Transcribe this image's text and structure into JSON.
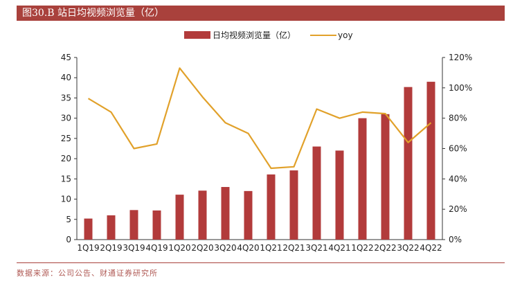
{
  "header": {
    "title": "图30.B 站日均视频浏览量（亿）"
  },
  "footer": {
    "source": "数据来源：公司公告、财通证券研究所"
  },
  "colors": {
    "bar": "#b23b3b",
    "line": "#e1a12a",
    "title_bg": "#a9413c"
  },
  "chart_data": {
    "type": "bar",
    "categories": [
      "1Q19",
      "2Q19",
      "3Q19",
      "4Q19",
      "1Q20",
      "2Q20",
      "3Q20",
      "4Q20",
      "1Q21",
      "2Q21",
      "3Q21",
      "4Q21",
      "1Q22",
      "2Q22",
      "3Q22",
      "4Q22"
    ],
    "series": [
      {
        "name": "日均视频浏览量（亿）",
        "type": "bar",
        "axis": "left",
        "values": [
          5.2,
          6.0,
          7.3,
          7.2,
          11.1,
          12.1,
          13.0,
          12.0,
          16.1,
          17.1,
          23.0,
          22.0,
          30.0,
          31.0,
          37.7,
          39.0
        ]
      },
      {
        "name": "yoy",
        "type": "line",
        "axis": "right",
        "values": [
          0.93,
          0.84,
          0.6,
          0.63,
          1.13,
          0.94,
          0.77,
          0.7,
          0.47,
          0.48,
          0.86,
          0.8,
          0.84,
          0.83,
          0.64,
          0.77
        ]
      }
    ],
    "y_left": {
      "ylim": [
        0,
        45
      ],
      "ticks": [
        "0",
        "5",
        "10",
        "15",
        "20",
        "25",
        "30",
        "35",
        "40",
        "45"
      ]
    },
    "y_right": {
      "ylim": [
        0,
        1.2
      ],
      "ticks": [
        "0%",
        "20%",
        "40%",
        "60%",
        "80%",
        "100%",
        "120%"
      ]
    },
    "legend_position": "top-center",
    "grid": false
  }
}
